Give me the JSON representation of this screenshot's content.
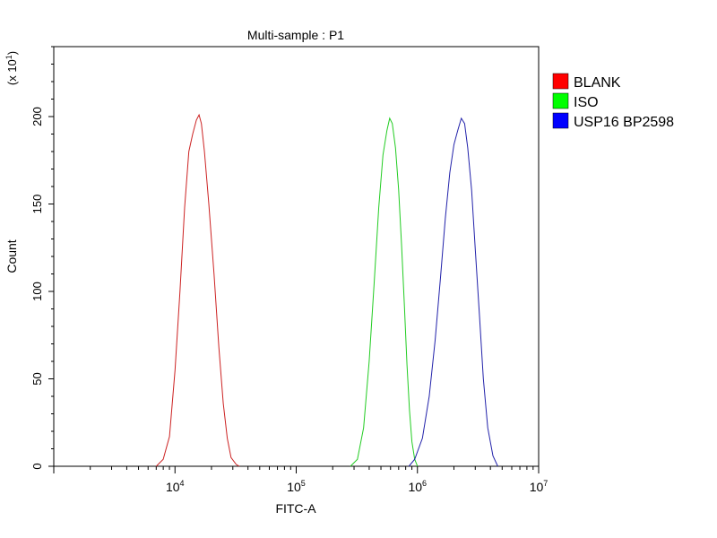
{
  "chart_data": {
    "type": "line",
    "title": "Multi-sample : P1",
    "xlabel": "FITC-A",
    "ylabel": "Count",
    "y_multiplier": {
      "base": "(x 10",
      "exp": "1",
      "close": ")"
    },
    "x_scale": "log",
    "xlim": [
      1000,
      10000000
    ],
    "ylim": [
      0,
      240
    ],
    "x_ticks": [
      {
        "value": 10000,
        "base": "10",
        "exp": "4"
      },
      {
        "value": 100000,
        "base": "10",
        "exp": "5"
      },
      {
        "value": 1000000,
        "base": "10",
        "exp": "6"
      },
      {
        "value": 10000000,
        "base": "10",
        "exp": "7"
      }
    ],
    "y_ticks": [
      0,
      50,
      100,
      150,
      200
    ],
    "legend_position": "right",
    "series": [
      {
        "name": "BLANK",
        "color": "#cc2222",
        "swatch": "#ff0000",
        "x": [
          7000,
          8000,
          9000,
          10000,
          11000,
          12000,
          13000,
          14000,
          15000,
          15800,
          16500,
          17500,
          19000,
          21000,
          23000,
          25000,
          27000,
          29000,
          32000,
          34000
        ],
        "y": [
          0,
          4,
          17,
          55,
          100,
          148,
          180,
          190,
          198,
          201,
          196,
          180,
          150,
          110,
          68,
          36,
          16,
          5,
          1,
          0
        ]
      },
      {
        "name": "ISO",
        "color": "#22cc22",
        "swatch": "#00ff00",
        "x": [
          280000,
          320000,
          360000,
          400000,
          440000,
          480000,
          520000,
          560000,
          590000,
          620000,
          660000,
          700000,
          740000,
          780000,
          820000,
          860000,
          900000,
          950000,
          1000000
        ],
        "y": [
          0,
          4,
          22,
          60,
          105,
          148,
          178,
          192,
          199,
          196,
          182,
          158,
          126,
          92,
          58,
          32,
          14,
          4,
          0
        ]
      },
      {
        "name": "USP16 BP2598",
        "color": "#2222aa",
        "swatch": "#0000ff",
        "x": [
          850000,
          950000,
          1100000,
          1250000,
          1400000,
          1550000,
          1700000,
          1850000,
          2000000,
          2150000,
          2300000,
          2450000,
          2600000,
          2800000,
          3000000,
          3250000,
          3500000,
          3800000,
          4200000,
          4600000
        ],
        "y": [
          0,
          4,
          16,
          40,
          72,
          108,
          142,
          168,
          184,
          192,
          199,
          196,
          182,
          158,
          124,
          86,
          50,
          22,
          6,
          0
        ]
      }
    ]
  }
}
